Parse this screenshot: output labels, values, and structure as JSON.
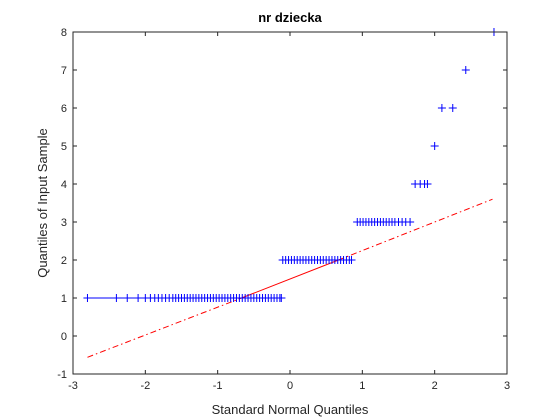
{
  "chart_data": {
    "type": "scatter",
    "title": "nr dziecka",
    "xlabel": "Standard Normal Quantiles",
    "ylabel": "Quantiles of Input Sample",
    "xlim": [
      -3,
      3
    ],
    "ylim": [
      -1,
      8
    ],
    "xticks": [
      "-3",
      "-2",
      "-1",
      "0",
      "1",
      "2",
      "3"
    ],
    "yticks": [
      "-1",
      "0",
      "1",
      "2",
      "3",
      "4",
      "5",
      "6",
      "7",
      "8"
    ],
    "grid": false,
    "legend": "none",
    "colors": {
      "markers": "#0000ff",
      "fit_line": "#ff0000",
      "axes": "#262626"
    },
    "groups": [
      {
        "y": 1,
        "x_min": -2.8,
        "x_max": -0.12,
        "x": [
          -2.8,
          -2.4,
          -2.25,
          -2.1,
          -2.0,
          -1.93,
          -1.87,
          -1.82,
          -1.77,
          -1.72,
          -1.67,
          -1.62,
          -1.58,
          -1.54,
          -1.5,
          -1.46,
          -1.42,
          -1.38,
          -1.34,
          -1.3,
          -1.26,
          -1.22,
          -1.18,
          -1.14,
          -1.1,
          -1.06,
          -1.02,
          -0.98,
          -0.94,
          -0.9,
          -0.86,
          -0.82,
          -0.78,
          -0.74,
          -0.7,
          -0.66,
          -0.62,
          -0.58,
          -0.54,
          -0.5,
          -0.46,
          -0.42,
          -0.38,
          -0.34,
          -0.3,
          -0.26,
          -0.22,
          -0.18,
          -0.14,
          -0.12
        ]
      },
      {
        "y": 2,
        "x_min": -0.1,
        "x_max": 0.85,
        "x": [
          -0.1,
          -0.06,
          -0.02,
          0.02,
          0.06,
          0.1,
          0.14,
          0.18,
          0.22,
          0.26,
          0.3,
          0.34,
          0.38,
          0.42,
          0.46,
          0.5,
          0.54,
          0.58,
          0.62,
          0.66,
          0.7,
          0.74,
          0.78,
          0.82,
          0.85
        ]
      },
      {
        "y": 3,
        "x_min": 0.93,
        "x_max": 1.66,
        "x": [
          0.93,
          0.97,
          1.01,
          1.05,
          1.09,
          1.13,
          1.17,
          1.21,
          1.25,
          1.29,
          1.33,
          1.37,
          1.41,
          1.45,
          1.5,
          1.55,
          1.6,
          1.66
        ]
      },
      {
        "y": 4,
        "x_min": 1.73,
        "x_max": 1.9,
        "x": [
          1.73,
          1.8,
          1.86,
          1.9
        ]
      },
      {
        "y": 5,
        "x": [
          2.0
        ]
      },
      {
        "y": 6,
        "x": [
          2.1,
          2.25
        ]
      },
      {
        "y": 7,
        "x": [
          2.43
        ]
      },
      {
        "y": 8,
        "x": [
          2.82
        ]
      }
    ],
    "fit_line": {
      "solid": {
        "x": [
          -0.67,
          0.67
        ],
        "y": [
          1.0,
          2.0
        ]
      },
      "dashdot": [
        {
          "x": [
            -2.8,
            -0.67
          ],
          "y": [
            -0.56,
            1.0
          ]
        },
        {
          "x": [
            0.67,
            2.8
          ],
          "y": [
            2.0,
            3.6
          ]
        }
      ]
    }
  }
}
